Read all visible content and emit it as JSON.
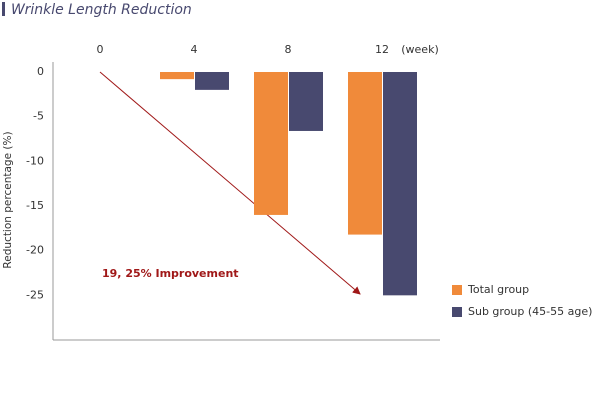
{
  "chart_data": {
    "type": "bar",
    "title": "Wrinkle Length Reduction",
    "x_unit": "(week)",
    "ylabel": "Reduction percentage (%)",
    "annotation": "19, 25% Improvement",
    "categories": [
      "0",
      "4",
      "8",
      "12"
    ],
    "series": [
      {
        "name": "Total group",
        "color": "#f08a3a",
        "values": [
          0,
          -0.8,
          -16,
          -18.2
        ]
      },
      {
        "name": "Sub group  (45-55 age)",
        "color": "#48496f",
        "values": [
          0,
          -2,
          -6.6,
          -25
        ]
      }
    ],
    "ylim": [
      -30,
      0
    ],
    "yticks": [
      0,
      -5,
      -10,
      -15,
      -20,
      -25
    ],
    "legend": "lower right"
  }
}
